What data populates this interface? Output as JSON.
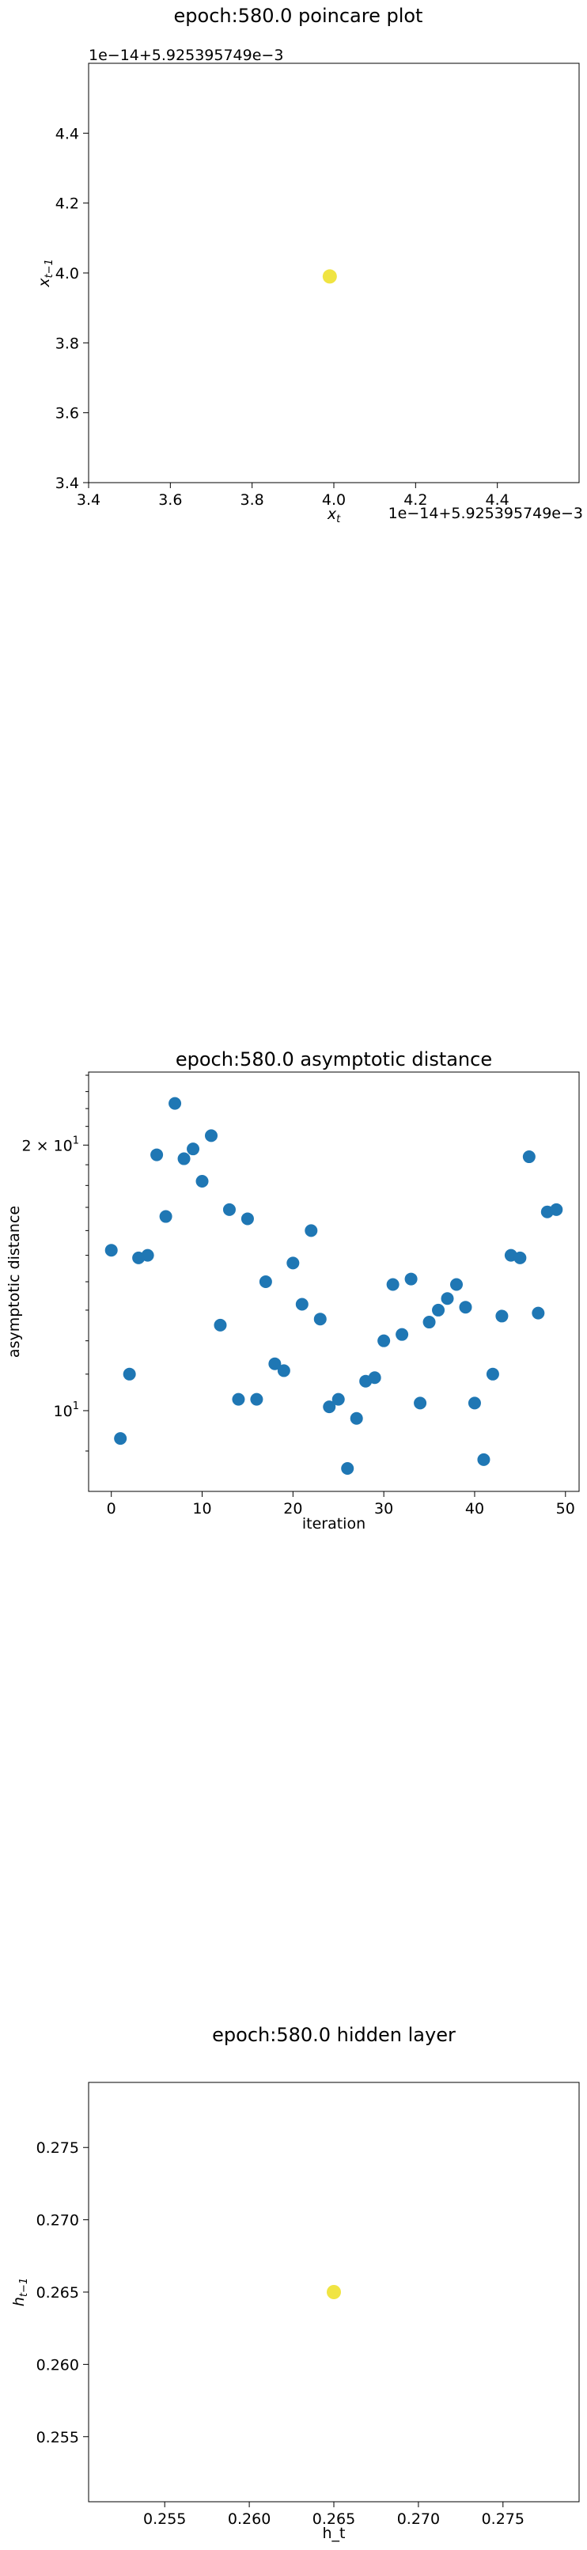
{
  "chart_data": [
    {
      "type": "scatter",
      "title": "epoch:580.0 poincare plot",
      "xlabel": "x_t",
      "ylabel": "x_{t-1}",
      "x_offset_label": "1e−14+5.925395749e−3",
      "y_offset_label": "1e−14+5.925395749e−3",
      "xlim": [
        3.4,
        4.6
      ],
      "ylim": [
        3.4,
        4.6
      ],
      "xticks": [
        "3.4",
        "3.6",
        "3.8",
        "4.0",
        "4.2",
        "4.4"
      ],
      "xtick_values": [
        3.4,
        3.6,
        3.8,
        4.0,
        4.2,
        4.4
      ],
      "yticks": [
        "3.4",
        "3.6",
        "3.8",
        "4.0",
        "4.2",
        "4.4"
      ],
      "ytick_values": [
        3.4,
        3.6,
        3.8,
        4.0,
        4.2,
        4.4
      ],
      "points": [
        {
          "x": 3.99,
          "y": 3.99
        }
      ],
      "point_color": "#f0e442",
      "grid": false
    },
    {
      "type": "scatter",
      "title": "epoch:580.0 asymptotic distance",
      "xlabel": "iteration",
      "ylabel": "asymptotic distance",
      "y_scale": "log",
      "xlim": [
        -2.5,
        51.5
      ],
      "ylim": [
        8.1,
        24.2
      ],
      "xticks": [
        "0",
        "10",
        "20",
        "30",
        "40",
        "50"
      ],
      "xtick_values": [
        0,
        10,
        20,
        30,
        40,
        50
      ],
      "ytick_major_labels": [
        "2 × 10",
        "10"
      ],
      "ytick_major_exponent": "1",
      "ytick_major_values": [
        20,
        10
      ],
      "x": [
        0,
        1,
        2,
        3,
        4,
        5,
        6,
        7,
        8,
        9,
        10,
        11,
        12,
        13,
        14,
        15,
        16,
        17,
        18,
        19,
        20,
        21,
        22,
        23,
        24,
        25,
        26,
        27,
        28,
        29,
        30,
        31,
        32,
        33,
        34,
        35,
        36,
        37,
        38,
        39,
        40,
        41,
        42,
        43,
        44,
        45,
        46,
        47,
        48,
        49
      ],
      "values": [
        15.2,
        9.3,
        11.0,
        14.9,
        15.0,
        19.5,
        16.6,
        22.3,
        19.3,
        19.8,
        18.2,
        20.5,
        12.5,
        16.9,
        10.3,
        16.5,
        10.3,
        14.0,
        11.3,
        11.1,
        14.7,
        13.2,
        16.0,
        12.7,
        10.1,
        10.3,
        8.6,
        9.8,
        10.8,
        10.9,
        12.0,
        13.9,
        12.2,
        14.1,
        10.2,
        12.6,
        13.0,
        13.4,
        13.9,
        13.1,
        10.2,
        8.8,
        11.0,
        12.8,
        15.0,
        14.9,
        19.4,
        12.9,
        16.8,
        16.9
      ],
      "point_color": "#1f77b4",
      "grid": false
    },
    {
      "type": "scatter",
      "title": "epoch:580.0 hidden layer",
      "xlabel": "h_t",
      "ylabel": "h_{t-1}",
      "xlim": [
        0.2505,
        0.2795
      ],
      "ylim": [
        0.2505,
        0.2795
      ],
      "xticks": [
        "0.255",
        "0.260",
        "0.265",
        "0.270",
        "0.275"
      ],
      "xtick_values": [
        0.255,
        0.26,
        0.265,
        0.27,
        0.275
      ],
      "yticks": [
        "0.255",
        "0.260",
        "0.265",
        "0.270",
        "0.275"
      ],
      "ytick_values": [
        0.255,
        0.26,
        0.265,
        0.27,
        0.275
      ],
      "points": [
        {
          "x": 0.265,
          "y": 0.265
        }
      ],
      "point_color": "#f0e442",
      "grid": false
    }
  ]
}
